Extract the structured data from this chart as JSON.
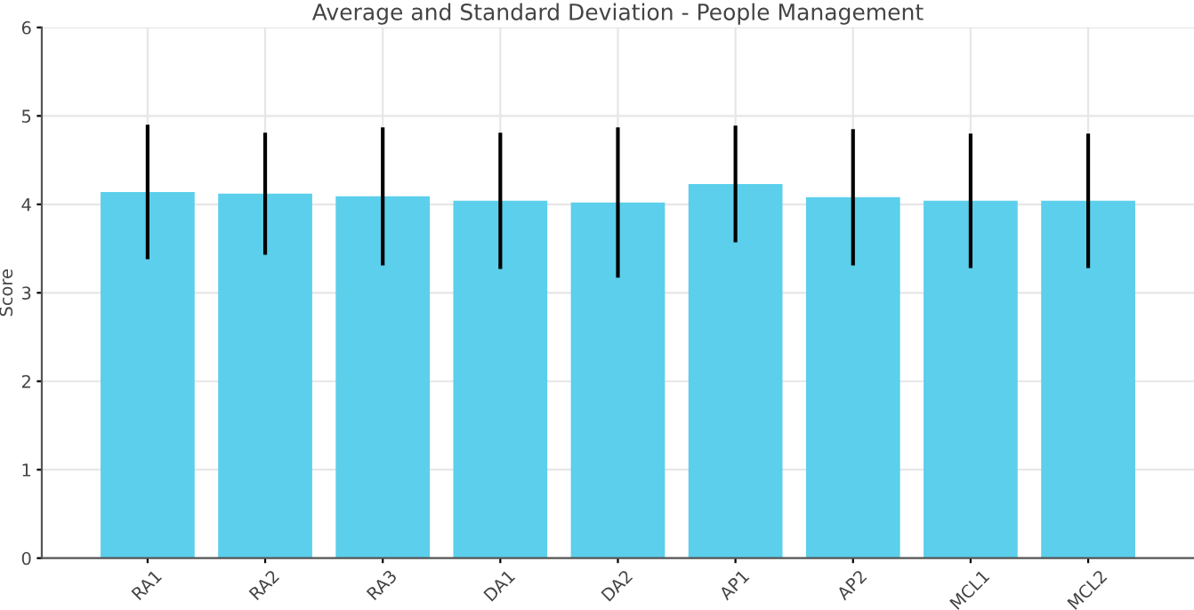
{
  "chart_data": {
    "type": "bar",
    "title": "Average and Standard Deviation - People Management",
    "ylabel": "Score",
    "categories": [
      "RA1",
      "RA2",
      "RA3",
      "DA1",
      "DA2",
      "AP1",
      "AP2",
      "MCL1",
      "MCL2"
    ],
    "values": [
      4.14,
      4.12,
      4.09,
      4.04,
      4.02,
      4.23,
      4.08,
      4.04,
      4.04
    ],
    "errors": [
      0.76,
      0.69,
      0.78,
      0.77,
      0.85,
      0.66,
      0.77,
      0.76,
      0.76
    ],
    "color": "#5bcfeb",
    "ylim": [
      0,
      6
    ],
    "yticks": [
      0,
      1,
      2,
      3,
      4,
      5,
      6
    ],
    "grid": true
  }
}
